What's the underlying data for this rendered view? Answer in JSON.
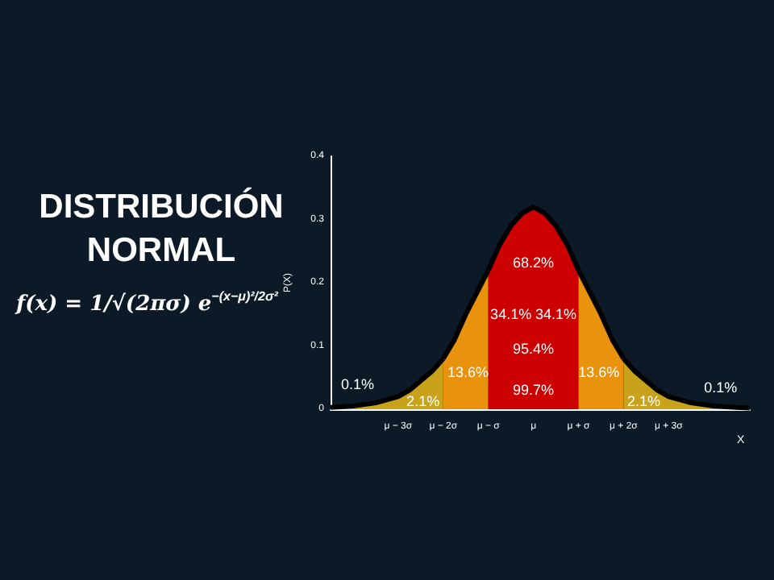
{
  "chart_data": {
    "type": "area",
    "title": "DISTRIBUCIÓN\nNORMAL",
    "ylabel": "P(X)",
    "xlabel": "X",
    "xlim": [
      -4.5,
      4.8
    ],
    "xticks": [
      {
        "value": -3,
        "label": "μ − 3σ"
      },
      {
        "value": -2,
        "label": "μ − 2σ"
      },
      {
        "value": -1,
        "label": "μ − σ"
      },
      {
        "value": 0,
        "label": "μ"
      },
      {
        "value": 1,
        "label": "μ + σ"
      },
      {
        "value": 2,
        "label": "μ + 2σ"
      },
      {
        "value": 3,
        "label": "μ + 3σ"
      }
    ],
    "ylim": [
      0,
      0.4
    ],
    "yticks": [
      0,
      0.1,
      0.2,
      0.3,
      0.4
    ],
    "grid": false,
    "series": [
      {
        "color": "#c9a21c",
        "x": [
          -4.5,
          -4,
          -3.5,
          -3,
          -2.75,
          -2.5,
          -2.25,
          -2
        ],
        "values": [
          0.003,
          0.005,
          0.01,
          0.02,
          0.03,
          0.045,
          0.06,
          0.08
        ]
      },
      {
        "color": "#e8920e",
        "x": [
          -2,
          -1.75,
          -1.5,
          -1.25,
          -1
        ],
        "values": [
          0.08,
          0.11,
          0.15,
          0.185,
          0.22
        ]
      },
      {
        "color": "#cc0000",
        "x": [
          -1,
          -0.75,
          -0.5,
          -0.25,
          0,
          0.25,
          0.5,
          0.75,
          1
        ],
        "values": [
          0.22,
          0.26,
          0.29,
          0.31,
          0.32,
          0.31,
          0.29,
          0.26,
          0.22
        ]
      },
      {
        "color": "#e8920e",
        "x": [
          1,
          1.25,
          1.5,
          1.75,
          2
        ],
        "values": [
          0.22,
          0.185,
          0.15,
          0.11,
          0.08
        ]
      },
      {
        "color": "#c9a21c",
        "x": [
          2,
          2.25,
          2.5,
          2.75,
          3,
          3.5,
          4,
          4.5,
          4.8
        ],
        "values": [
          0.08,
          0.06,
          0.045,
          0.03,
          0.02,
          0.01,
          0.005,
          0.003,
          0.002
        ]
      }
    ],
    "annotations": [
      "f(x) = 1/√(2πσ) e$^{−(x−μ)²/2σ²}$",
      "68.2%",
      "34.1%",
      "34.1%",
      "95.4%",
      "13.6%",
      "13.6%",
      "99.7%",
      "2.1%",
      "2.1%",
      "0.1%",
      "0.1%"
    ]
  }
}
